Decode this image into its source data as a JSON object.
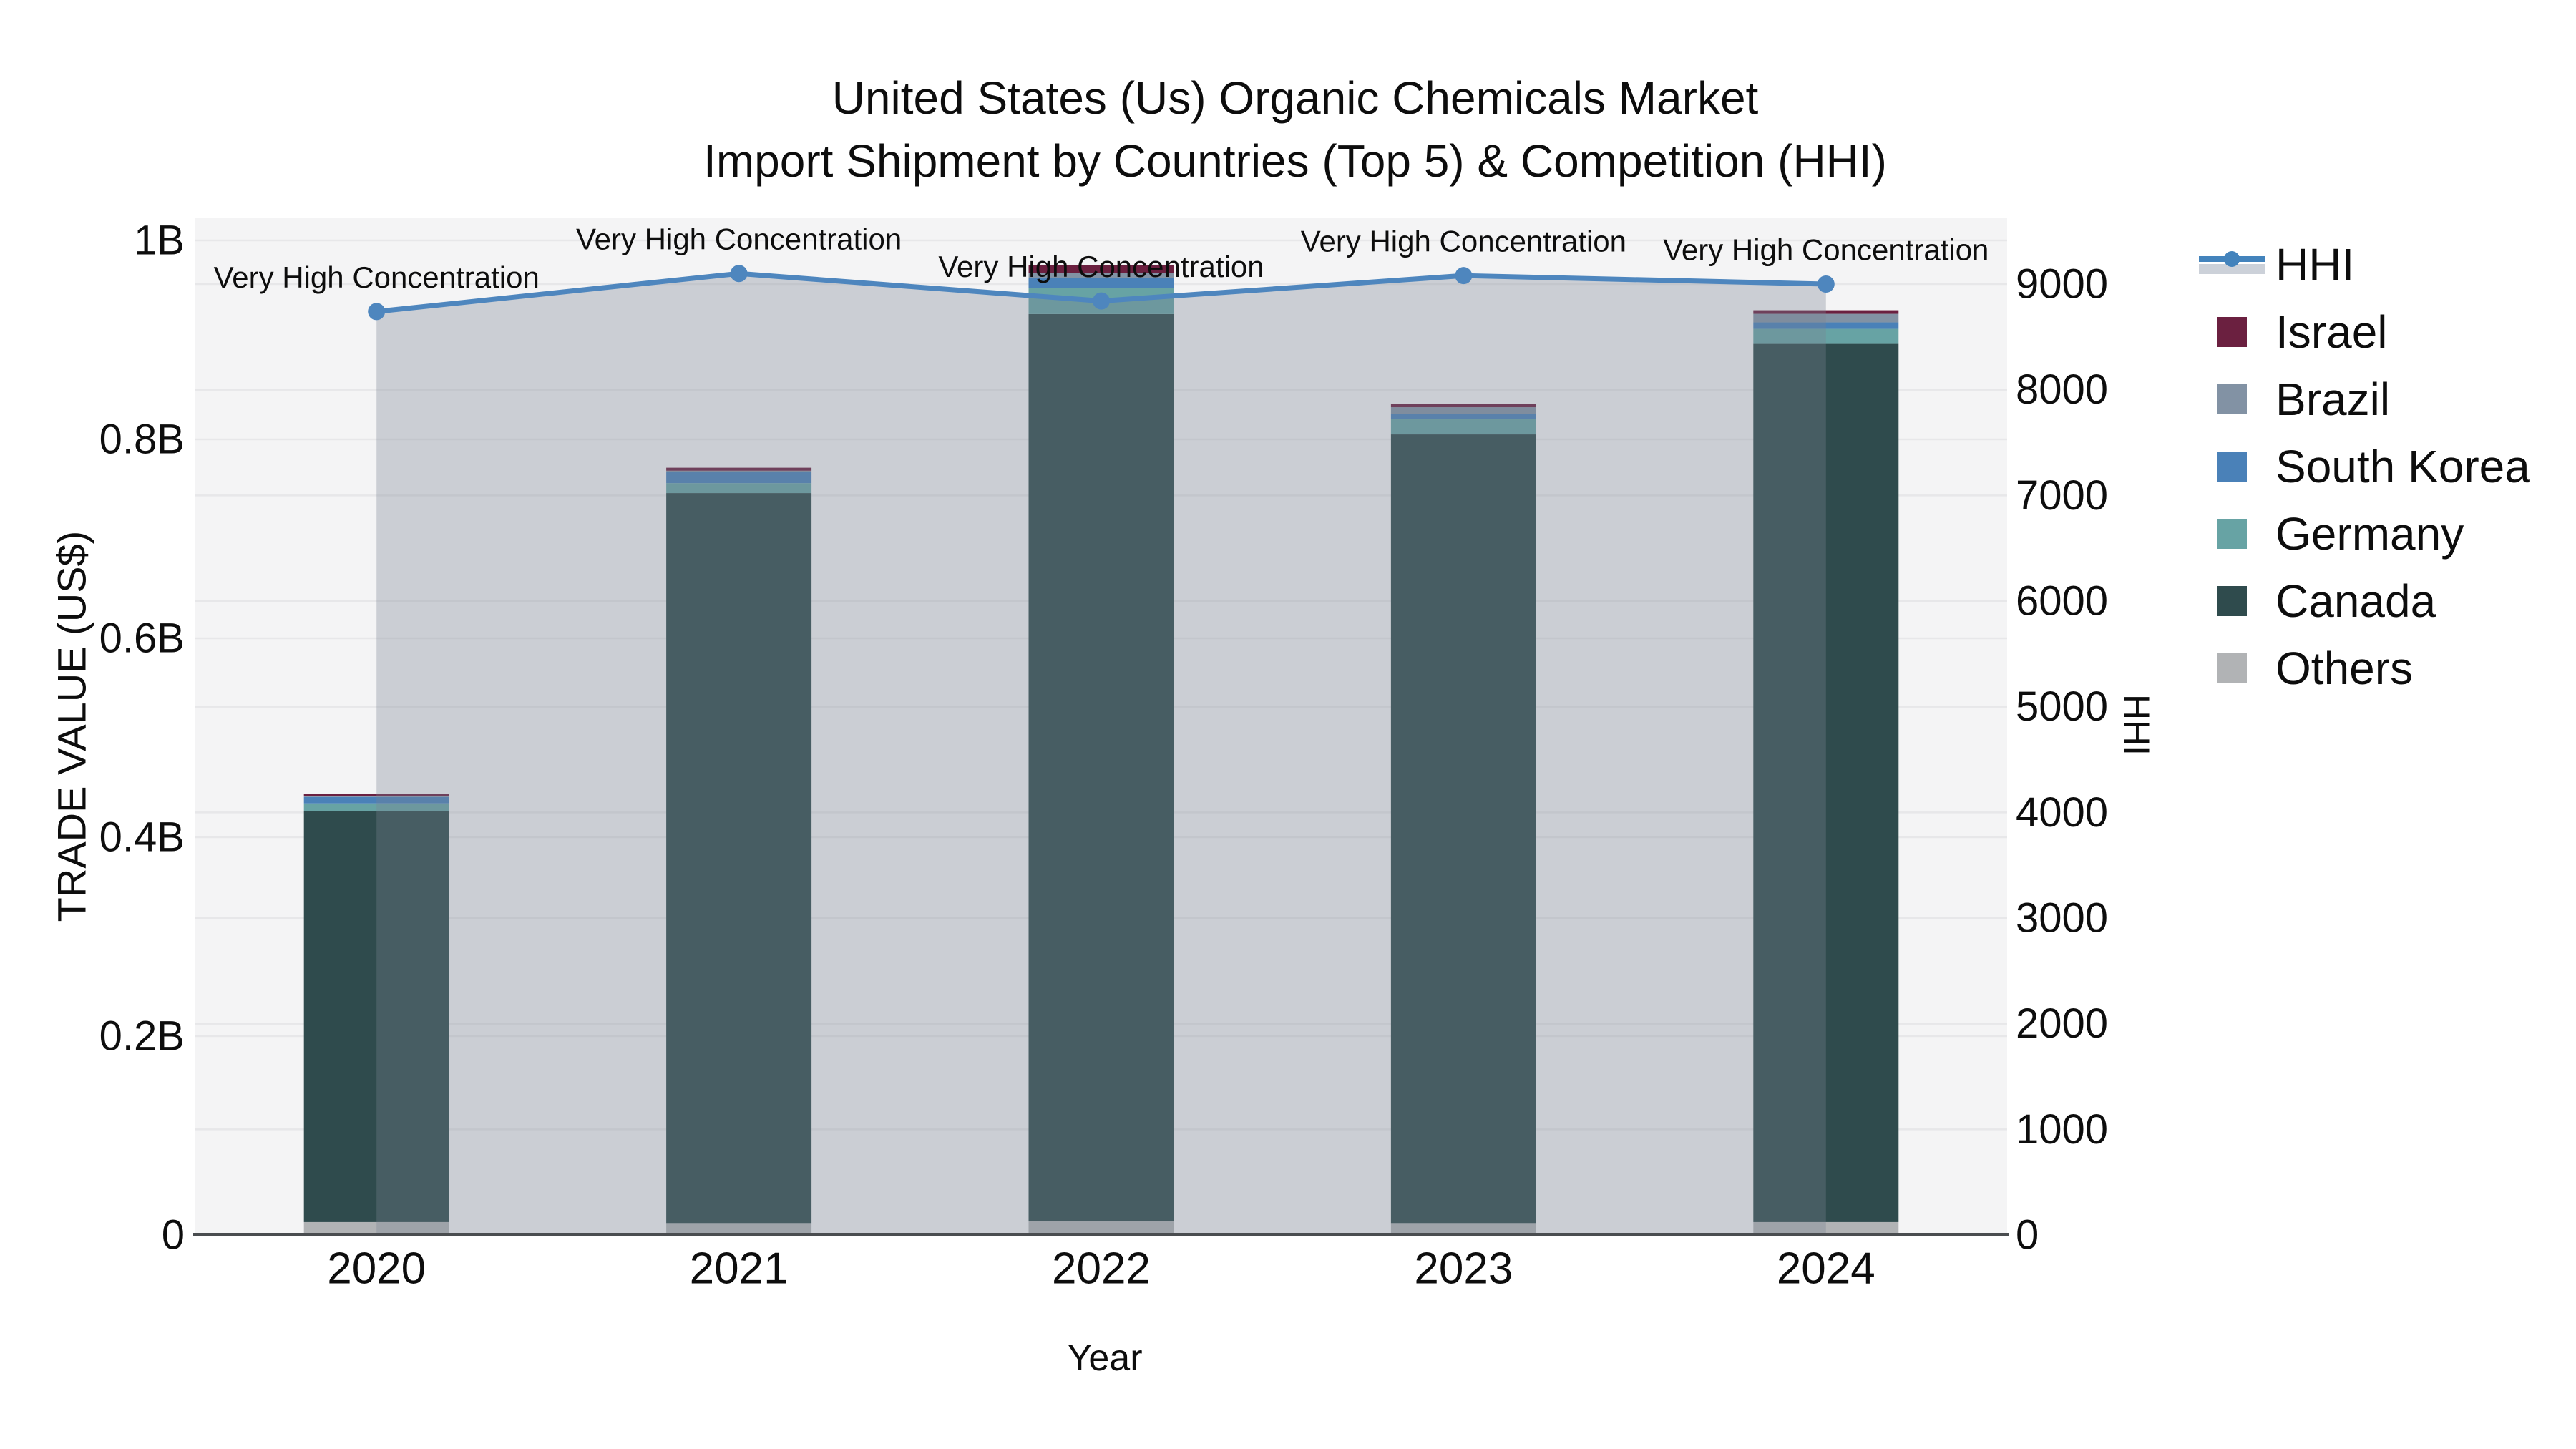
{
  "title": {
    "line1": "United States (Us) Organic Chemicals Market",
    "line2": "Import Shipment by Countries (Top 5) & Competition (HHI)"
  },
  "axes": {
    "left": {
      "title": "TRADE VALUE (US$)",
      "ticks": [
        {
          "label": "0",
          "value": 0.0
        },
        {
          "label": "0.2B",
          "value": 0.2
        },
        {
          "label": "0.4B",
          "value": 0.4
        },
        {
          "label": "0.6B",
          "value": 0.6
        },
        {
          "label": "0.8B",
          "value": 0.8
        },
        {
          "label": "1B",
          "value": 1.0
        }
      ]
    },
    "right": {
      "title": "HHI",
      "ticks": [
        {
          "label": "0",
          "value": 0
        },
        {
          "label": "1000",
          "value": 1000
        },
        {
          "label": "2000",
          "value": 2000
        },
        {
          "label": "3000",
          "value": 3000
        },
        {
          "label": "4000",
          "value": 4000
        },
        {
          "label": "5000",
          "value": 5000
        },
        {
          "label": "6000",
          "value": 6000
        },
        {
          "label": "7000",
          "value": 7000
        },
        {
          "label": "8000",
          "value": 8000
        },
        {
          "label": "9000",
          "value": 9000
        }
      ]
    },
    "x": {
      "title": "Year"
    }
  },
  "legend": {
    "items": [
      {
        "label": "HHI",
        "type": "line-marker",
        "color": "#4383bc"
      },
      {
        "label": "Israel",
        "type": "swatch",
        "color": "#6b2040"
      },
      {
        "label": "Brazil",
        "type": "swatch",
        "color": "#8292a4"
      },
      {
        "label": "South Korea",
        "type": "swatch",
        "color": "#4a81b8"
      },
      {
        "label": "Germany",
        "type": "swatch",
        "color": "#67a3a4"
      },
      {
        "label": "Canada",
        "type": "swatch",
        "color": "#2f4b4d"
      },
      {
        "label": "Others",
        "type": "swatch",
        "color": "#b1b3b5"
      }
    ]
  },
  "chart_data": {
    "type": "stacked-bar+line",
    "unit": "Trade value in USD billions (left axis); HHI index (right axis)",
    "categories": [
      "2020",
      "2021",
      "2022",
      "2023",
      "2024"
    ],
    "series": [
      {
        "name": "Others",
        "color": "#b1b3b5",
        "values": [
          0.013,
          0.012,
          0.014,
          0.012,
          0.013
        ]
      },
      {
        "name": "Canada",
        "color": "#2f4b4d",
        "values": [
          0.413,
          0.734,
          0.912,
          0.793,
          0.883
        ]
      },
      {
        "name": "Germany",
        "color": "#67a3a4",
        "values": [
          0.008,
          0.01,
          0.0265,
          0.0158,
          0.0151
        ]
      },
      {
        "name": "South Korea",
        "color": "#4a81b8",
        "values": [
          0.0065,
          0.011,
          0.01,
          0.005,
          0.0065
        ]
      },
      {
        "name": "Brazil",
        "color": "#8292a4",
        "values": [
          0.0012,
          0.0015,
          0.0045,
          0.0065,
          0.0086
        ]
      },
      {
        "name": "Israel",
        "color": "#6b2040",
        "values": [
          0.002,
          0.003,
          0.0085,
          0.0036,
          0.0036
        ]
      }
    ],
    "bar_totals": [
      0.444,
      0.772,
      0.976,
      0.836,
      0.929
    ],
    "line_series": {
      "name": "HHI",
      "axis": "right",
      "color": "#4e86be",
      "area_fill": "rgba(120,130,146,0.33)",
      "values": [
        8740,
        9100,
        8840,
        9080,
        9000
      ]
    },
    "annotations": [
      "Very High Concentration",
      "Very High Concentration",
      "Very High Concentration",
      "Very High Concentration",
      "Very High Concentration"
    ],
    "left_axis_range": [
      0,
      1.0
    ],
    "right_axis_range": [
      0,
      9620
    ],
    "grid": "horizontal gridlines at left-axis 0.2B steps and right-axis 1000 steps",
    "legend_position": "right"
  },
  "colors": {
    "plot_bg": "#f4f4f5",
    "page_bg": "#ffffff",
    "gridline": "#e7e7e9",
    "axis_line": "#4a4d50",
    "text": "#111111"
  }
}
